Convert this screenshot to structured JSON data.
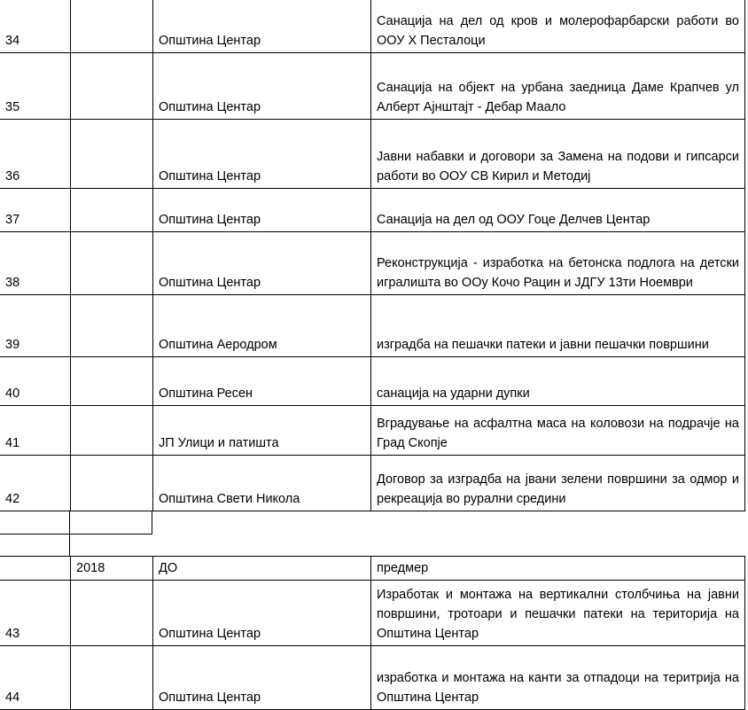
{
  "rows_before": [
    {
      "no": "34",
      "year": "",
      "entity": "Општина Центар",
      "description": "Санација на дел од кров и молерофарбарски работи во ООУ Х Песталоци"
    },
    {
      "no": "35",
      "year": "",
      "entity": "Општина Центар",
      "description": "Санација на објект на урбана заедница Даме Крапчев ул Алберт Ајнштајт - Дебар Маало"
    },
    {
      "no": "36",
      "year": "",
      "entity": "Општина Центар",
      "description": "Јавни набавки и договори за Замена на подови и гипсарси работи во ООУ СВ Кирил и Методиј"
    },
    {
      "no": "37",
      "year": "",
      "entity": "Општина Центар",
      "description": "Санација на дел од ООУ Гоце Делчев Центар"
    },
    {
      "no": "38",
      "year": "",
      "entity": "Општина Центар",
      "description": "Реконструкција - изработка на бетонска подлога на детски игралишта во ООу Кочо Рацин и ЈДГУ 13ти Ноември"
    },
    {
      "no": "39",
      "year": "",
      "entity": "Општина Аеродром",
      "description": "изградба на пешачки патеки и јавни пешачки површини"
    },
    {
      "no": "40",
      "year": "",
      "entity": "Општина Ресен",
      "description": "санација на ударни дупки"
    },
    {
      "no": "41",
      "year": "",
      "entity": "ЈП Улици и патишта",
      "description": "Вградување на асфалтна маса на коловози на подрачје на Град Скопје"
    },
    {
      "no": "42",
      "year": "",
      "entity": "Општина Свети Никола",
      "description": "Договор за изградба на јвани зелени површини за одмор и рекреација во рурални средини"
    }
  ],
  "header_row": {
    "no": "",
    "year": "2018",
    "entity": "ДО",
    "description": "предмер"
  },
  "rows_after": [
    {
      "no": "43",
      "year": "",
      "entity": "Општина Центар",
      "description": "Изработак и монтажа на вертикални столбчиња на јавни површини, тротоари и пешачки патеки на територија на Општина Центар"
    },
    {
      "no": "44",
      "year": "",
      "entity": "Општина Центар",
      "description": "изработка и монтажа на канти за отпадоци на теритрија на Општина Центар"
    }
  ]
}
